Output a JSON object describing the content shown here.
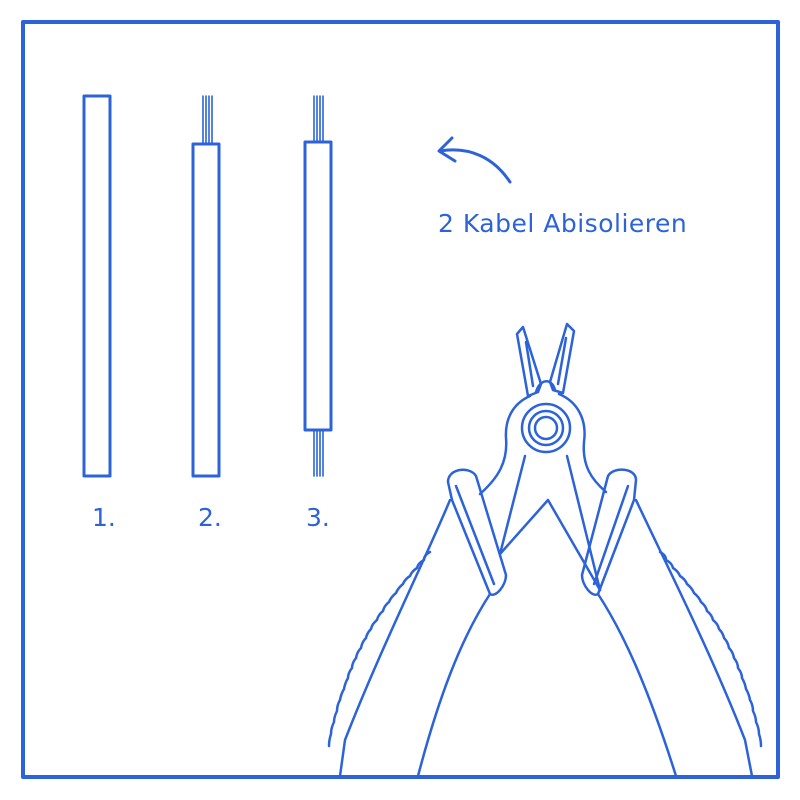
{
  "colors": {
    "stroke": "#2c63d9",
    "background": "#ffffff"
  },
  "steps": [
    {
      "label": "1.",
      "state": "insulated-cable"
    },
    {
      "label": "2.",
      "state": "stripped-one-end"
    },
    {
      "label": "3.",
      "state": "stripped-both-ends"
    }
  ],
  "instruction": {
    "text": "2 Kabel Abisolieren",
    "arrow_icon": "curved-arrow-left-icon"
  },
  "tool": {
    "icon": "wire-stripper-pliers-icon"
  }
}
